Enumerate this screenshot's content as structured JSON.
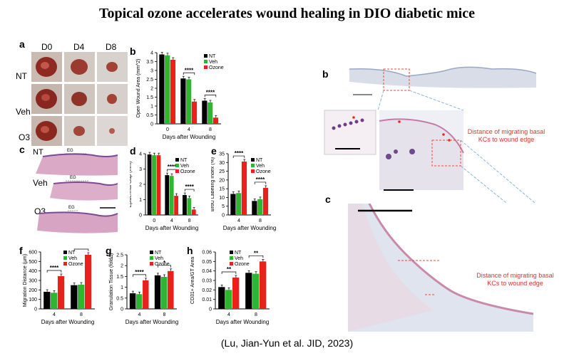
{
  "title": "Topical ozone accelerates wound healing in DIO diabetic mice",
  "citation": "(Lu, Jian-Yun et al. JID, 2023)",
  "colors": {
    "NT": "#000000",
    "Veh": "#2fb52f",
    "Ozone": "#e8211d"
  },
  "panel_a": {
    "label": "a",
    "columns": [
      "D0",
      "D4",
      "D8"
    ],
    "rows": [
      "NT",
      "Veh",
      "O3"
    ]
  },
  "panel_c": {
    "label": "c",
    "rows": [
      "NT",
      "Veh",
      "O3"
    ],
    "eg_label": "EG"
  },
  "panel_b_right": {
    "label": "b",
    "annotation": "Distance of migrating basal KCs to wound edge"
  },
  "panel_c_right": {
    "label": "c",
    "annotation": "Distance of migrating basal KCs to wound edge"
  },
  "chart_data": [
    {
      "id": "b",
      "type": "bar",
      "ylabel": "Open Wound Area (mm^2)",
      "xlabel": "Days after Wounding",
      "categories": [
        "0",
        "4",
        "8"
      ],
      "ylim": [
        0,
        4
      ],
      "yticks": [
        0,
        0.5,
        1,
        1.5,
        2,
        2.5,
        3,
        3.5,
        4
      ],
      "series": [
        {
          "name": "NT",
          "values": [
            3.9,
            2.55,
            1.3
          ]
        },
        {
          "name": "Veh",
          "values": [
            3.85,
            2.5,
            1.2
          ]
        },
        {
          "name": "Ozone",
          "values": [
            3.6,
            1.25,
            0.35
          ]
        }
      ],
      "sig": [
        {
          "cat": 1,
          "text": "****"
        },
        {
          "cat": 2,
          "text": "****"
        }
      ]
    },
    {
      "id": "d",
      "type": "bar",
      "ylabel": "Epidermal Gap (mm)",
      "xlabel": "Days after Wounding",
      "categories": [
        "0",
        "4",
        "8"
      ],
      "ylim": [
        0,
        4
      ],
      "yticks": [
        0,
        1,
        2,
        3,
        4
      ],
      "series": [
        {
          "name": "NT",
          "values": [
            3.95,
            2.6,
            1.3
          ]
        },
        {
          "name": "Veh",
          "values": [
            3.9,
            2.55,
            1.1
          ]
        },
        {
          "name": "Ozone",
          "values": [
            3.9,
            1.25,
            0.35
          ]
        }
      ],
      "sig": [
        {
          "cat": 1,
          "text": "****"
        },
        {
          "cat": 2,
          "text": "****"
        }
      ]
    },
    {
      "id": "e",
      "type": "bar",
      "ylabel": "BrdU Labeling Index (%)",
      "xlabel": "Days after Wounding",
      "categories": [
        "4",
        "8"
      ],
      "ylim": [
        0,
        35
      ],
      "yticks": [
        0,
        5,
        10,
        15,
        20,
        25,
        30,
        35
      ],
      "series": [
        {
          "name": "NT",
          "values": [
            12,
            8
          ]
        },
        {
          "name": "Veh",
          "values": [
            12.5,
            9
          ]
        },
        {
          "name": "Ozone",
          "values": [
            30.5,
            15.5
          ]
        }
      ],
      "sig": [
        {
          "cat": 0,
          "text": "****"
        },
        {
          "cat": 1,
          "text": "****"
        }
      ]
    },
    {
      "id": "f",
      "type": "bar",
      "ylabel": "Migration Distance (µm)",
      "xlabel": "Days after Wounding",
      "categories": [
        "4",
        "8"
      ],
      "ylim": [
        0,
        600
      ],
      "yticks": [
        0,
        100,
        200,
        300,
        400,
        500,
        600
      ],
      "series": [
        {
          "name": "NT",
          "values": [
            180,
            250
          ]
        },
        {
          "name": "Veh",
          "values": [
            170,
            255
          ]
        },
        {
          "name": "Ozone",
          "values": [
            345,
            570
          ]
        }
      ],
      "sig": [
        {
          "cat": 0,
          "text": "****"
        },
        {
          "cat": 1,
          "text": "****"
        }
      ]
    },
    {
      "id": "g",
      "type": "bar",
      "ylabel": "Granulation Tissue (fold∆)",
      "xlabel": "Days after Wounding",
      "categories": [
        "4",
        "8"
      ],
      "ylim": [
        0,
        2.5
      ],
      "yticks": [
        0,
        0.5,
        1,
        1.5,
        2,
        2.5
      ],
      "series": [
        {
          "name": "NT",
          "values": [
            0.72,
            1.55
          ]
        },
        {
          "name": "Veh",
          "values": [
            0.68,
            1.48
          ]
        },
        {
          "name": "Ozone",
          "values": [
            1.32,
            1.75
          ]
        }
      ],
      "sig": [
        {
          "cat": 0,
          "text": "****"
        },
        {
          "cat": 1,
          "text": "*"
        }
      ]
    },
    {
      "id": "h",
      "type": "bar",
      "ylabel": "CD31+ Area/GT Area",
      "xlabel": "Days after Wounding",
      "categories": [
        "4",
        "8"
      ],
      "ylim": [
        0,
        0.06
      ],
      "yticks": [
        0,
        0.01,
        0.02,
        0.03,
        0.04,
        0.05,
        0.06
      ],
      "series": [
        {
          "name": "NT",
          "values": [
            0.023,
            0.038
          ]
        },
        {
          "name": "Veh",
          "values": [
            0.02,
            0.037
          ]
        },
        {
          "name": "Ozone",
          "values": [
            0.033,
            0.05
          ]
        }
      ],
      "sig": [
        {
          "cat": 0,
          "text": "**"
        },
        {
          "cat": 1,
          "text": "**"
        }
      ]
    }
  ]
}
